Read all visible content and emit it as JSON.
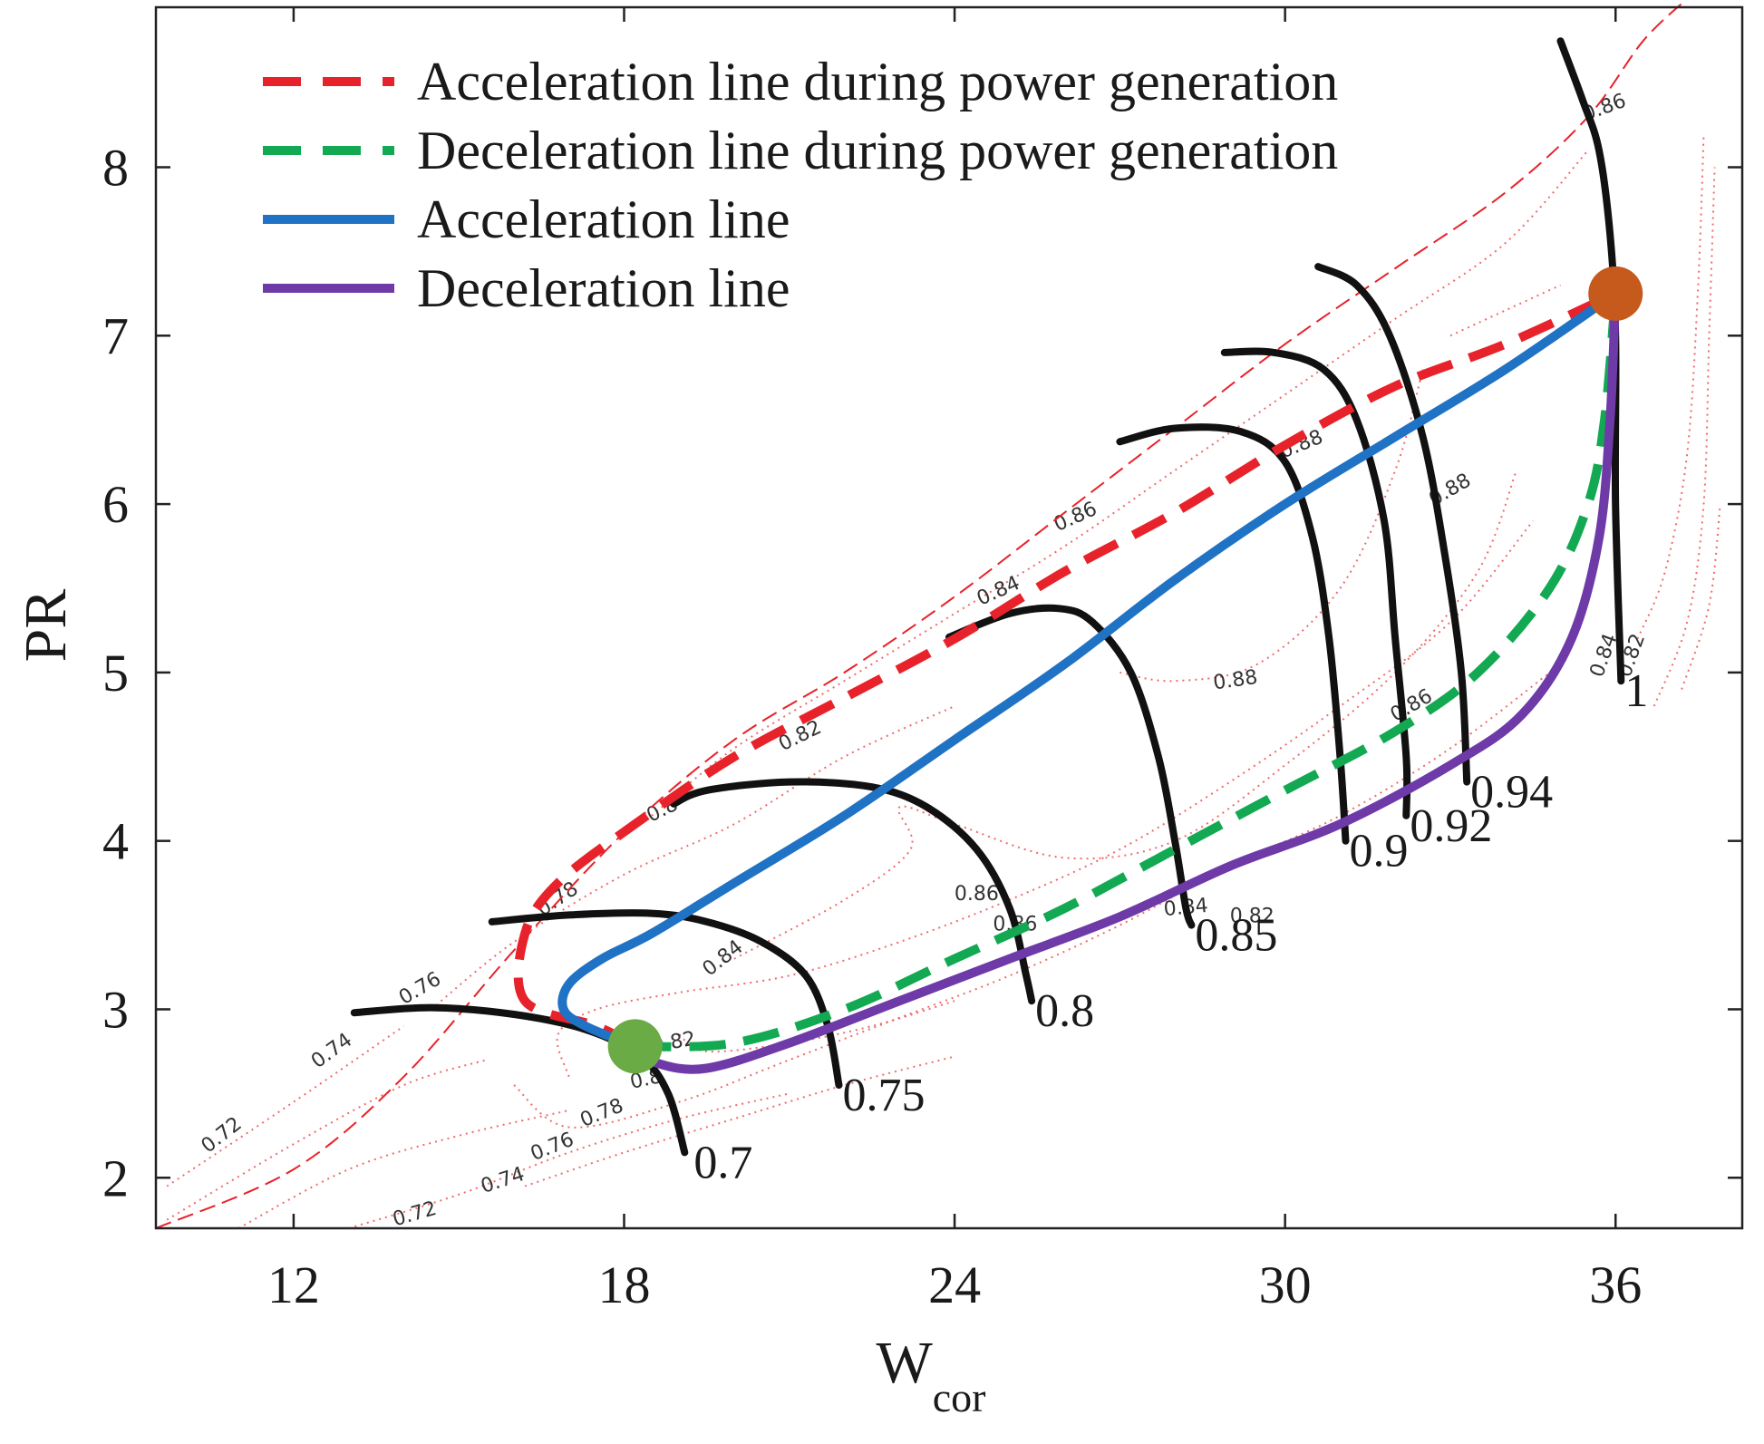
{
  "chart_data": {
    "type": "line",
    "title": "",
    "xlabel": "W",
    "xlabel_sub": "cor",
    "ylabel": "PR",
    "xlim": [
      9.5,
      38.3
    ],
    "ylim": [
      1.7,
      8.95
    ],
    "xticks": [
      12,
      18,
      24,
      30,
      36
    ],
    "yticks": [
      2,
      3,
      4,
      5,
      6,
      7,
      8
    ],
    "legend": [
      {
        "name": "Acceleration line during power generation",
        "color": "#e8222a",
        "style": "dashed"
      },
      {
        "name": "Deceleration line during power generation",
        "color": "#12a952",
        "style": "dashed"
      },
      {
        "name": "Acceleration line",
        "color": "#1f72c4",
        "style": "solid"
      },
      {
        "name": "Deceleration line",
        "color": "#6e3aa8",
        "style": "solid"
      }
    ],
    "series": [
      {
        "name": "Acceleration line during power generation",
        "color": "#e8222a",
        "style": "dashed",
        "points": [
          [
            18.2,
            2.78
          ],
          [
            17.5,
            2.9
          ],
          [
            16.2,
            3.05
          ],
          [
            16.2,
            3.45
          ],
          [
            16.8,
            3.75
          ],
          [
            18.2,
            4.1
          ],
          [
            20.0,
            4.5
          ],
          [
            22.0,
            4.85
          ],
          [
            24.0,
            5.2
          ],
          [
            26.0,
            5.6
          ],
          [
            28.0,
            5.95
          ],
          [
            30.0,
            6.35
          ],
          [
            32.0,
            6.7
          ],
          [
            34.0,
            6.95
          ],
          [
            36.0,
            7.25
          ]
        ]
      },
      {
        "name": "Deceleration line during power generation",
        "color": "#12a952",
        "style": "dashed",
        "points": [
          [
            18.2,
            2.78
          ],
          [
            20.0,
            2.8
          ],
          [
            22.0,
            3.0
          ],
          [
            24.0,
            3.3
          ],
          [
            26.0,
            3.6
          ],
          [
            28.0,
            3.95
          ],
          [
            30.0,
            4.3
          ],
          [
            32.0,
            4.65
          ],
          [
            33.5,
            5.0
          ],
          [
            34.8,
            5.5
          ],
          [
            35.5,
            6.0
          ],
          [
            35.8,
            6.5
          ],
          [
            36.0,
            7.25
          ]
        ]
      },
      {
        "name": "Acceleration line",
        "color": "#1f72c4",
        "style": "solid",
        "points": [
          [
            18.2,
            2.78
          ],
          [
            17.3,
            2.9
          ],
          [
            16.9,
            3.0
          ],
          [
            17.0,
            3.15
          ],
          [
            17.6,
            3.3
          ],
          [
            18.5,
            3.45
          ],
          [
            20.0,
            3.75
          ],
          [
            22.0,
            4.15
          ],
          [
            24.0,
            4.6
          ],
          [
            26.0,
            5.05
          ],
          [
            28.0,
            5.55
          ],
          [
            30.0,
            6.0
          ],
          [
            32.0,
            6.4
          ],
          [
            34.0,
            6.8
          ],
          [
            36.0,
            7.25
          ]
        ]
      },
      {
        "name": "Deceleration line",
        "color": "#6e3aa8",
        "style": "solid",
        "points": [
          [
            18.2,
            2.78
          ],
          [
            18.6,
            2.68
          ],
          [
            19.5,
            2.65
          ],
          [
            21.0,
            2.8
          ],
          [
            23.0,
            3.05
          ],
          [
            25.0,
            3.3
          ],
          [
            27.0,
            3.55
          ],
          [
            29.0,
            3.85
          ],
          [
            31.0,
            4.1
          ],
          [
            33.0,
            4.45
          ],
          [
            34.3,
            4.75
          ],
          [
            35.2,
            5.2
          ],
          [
            35.7,
            5.8
          ],
          [
            35.9,
            6.5
          ],
          [
            36.0,
            7.25
          ]
        ]
      }
    ],
    "speed_lines": [
      {
        "label": "0.7",
        "label_at": [
          19.2,
          2.15
        ],
        "points": [
          [
            13.1,
            2.98
          ],
          [
            14.5,
            3.01
          ],
          [
            16.0,
            2.97
          ],
          [
            17.3,
            2.88
          ],
          [
            18.3,
            2.72
          ],
          [
            18.8,
            2.5
          ],
          [
            19.1,
            2.15
          ]
        ]
      },
      {
        "label": "0.75",
        "label_at": [
          21.9,
          2.55
        ],
        "points": [
          [
            15.6,
            3.52
          ],
          [
            17.0,
            3.56
          ],
          [
            18.5,
            3.57
          ],
          [
            19.5,
            3.52
          ],
          [
            20.5,
            3.4
          ],
          [
            21.3,
            3.2
          ],
          [
            21.7,
            2.9
          ],
          [
            21.9,
            2.55
          ]
        ]
      },
      {
        "label": "0.8",
        "label_at": [
          25.4,
          3.05
        ],
        "points": [
          [
            18.9,
            4.22
          ],
          [
            19.5,
            4.3
          ],
          [
            21.0,
            4.35
          ],
          [
            22.5,
            4.32
          ],
          [
            23.5,
            4.2
          ],
          [
            24.4,
            3.95
          ],
          [
            25.0,
            3.6
          ],
          [
            25.3,
            3.2
          ],
          [
            25.4,
            3.05
          ]
        ]
      },
      {
        "label": "0.85",
        "label_at": [
          28.3,
          3.5
        ],
        "points": [
          [
            23.9,
            5.21
          ],
          [
            25.0,
            5.35
          ],
          [
            25.9,
            5.38
          ],
          [
            26.5,
            5.3
          ],
          [
            27.2,
            5.0
          ],
          [
            27.7,
            4.5
          ],
          [
            28.0,
            4.0
          ],
          [
            28.2,
            3.6
          ],
          [
            28.3,
            3.5
          ]
        ]
      },
      {
        "label": "0.9",
        "label_at": [
          31.1,
          4.0
        ],
        "points": [
          [
            27.0,
            6.37
          ],
          [
            28.0,
            6.45
          ],
          [
            29.2,
            6.43
          ],
          [
            30.0,
            6.25
          ],
          [
            30.5,
            5.8
          ],
          [
            30.8,
            5.2
          ],
          [
            31.0,
            4.5
          ],
          [
            31.1,
            4.0
          ]
        ]
      },
      {
        "label": "0.92",
        "label_at": [
          32.2,
          4.15
        ],
        "points": [
          [
            28.9,
            6.9
          ],
          [
            29.8,
            6.9
          ],
          [
            30.7,
            6.8
          ],
          [
            31.3,
            6.5
          ],
          [
            31.8,
            5.9
          ],
          [
            32.0,
            5.2
          ],
          [
            32.2,
            4.5
          ],
          [
            32.2,
            4.15
          ]
        ]
      },
      {
        "label": "0.94",
        "label_at": [
          33.3,
          4.35
        ],
        "points": [
          [
            30.6,
            7.41
          ],
          [
            31.3,
            7.3
          ],
          [
            31.9,
            7.0
          ],
          [
            32.5,
            6.4
          ],
          [
            32.9,
            5.7
          ],
          [
            33.2,
            5.0
          ],
          [
            33.3,
            4.35
          ]
        ]
      },
      {
        "label": "1",
        "label_at": [
          36.1,
          4.95
        ],
        "points": [
          [
            35.0,
            8.75
          ],
          [
            35.4,
            8.4
          ],
          [
            35.7,
            8.1
          ],
          [
            35.9,
            7.6
          ],
          [
            36.0,
            7.0
          ],
          [
            36.0,
            6.0
          ],
          [
            36.1,
            4.95
          ]
        ]
      }
    ],
    "efficiency_labels": [
      "0.72",
      "0.74",
      "0.76",
      "0.78",
      "0.8",
      "0.82",
      "0.84",
      "0.86",
      "0.88",
      "0.72",
      "0.74",
      "0.76",
      "0.78",
      "0.8",
      "0.82",
      "0.84",
      "0.86",
      "0.88",
      "0.86",
      "0.88",
      "0.86",
      "0.84",
      "0.82",
      "0.86",
      "0.84",
      "0.82"
    ],
    "markers": [
      {
        "name": "low-point",
        "x": 18.2,
        "y": 2.78,
        "color": "#6bab45"
      },
      {
        "name": "high-point",
        "x": 36.0,
        "y": 7.25,
        "color": "#c55a1c"
      }
    ]
  }
}
